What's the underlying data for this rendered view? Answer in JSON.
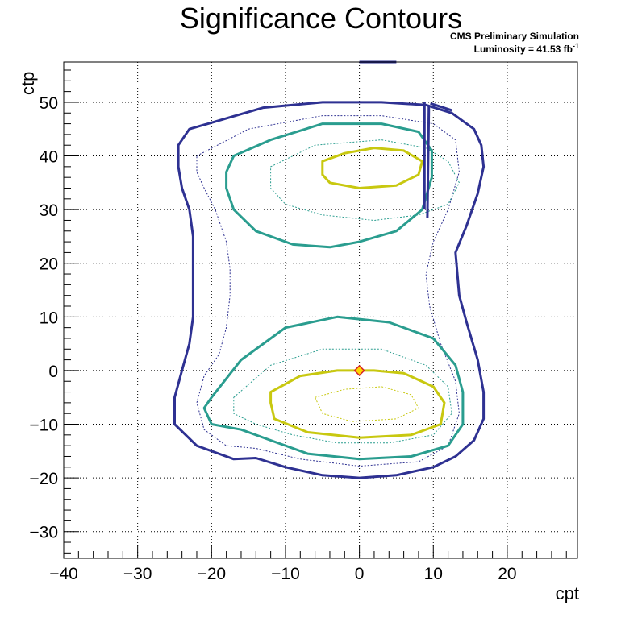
{
  "chart_data": {
    "type": "contour",
    "title": "Significance Contours",
    "annotation_line1": "CMS Preliminary Simulation",
    "annotation_line2": "Luminosity = 41.53 fb",
    "annotation_sup": "-1",
    "xlabel": "cpt",
    "ylabel": "ctp",
    "xlim": [
      -40,
      29.5
    ],
    "ylim": [
      -35,
      57.5
    ],
    "xticks": [
      -40,
      -30,
      -20,
      -10,
      0,
      10,
      20
    ],
    "xtick_labels": [
      "−40",
      "−30",
      "−20",
      "−10",
      "0",
      "10",
      "20"
    ],
    "yticks": [
      -30,
      -20,
      -10,
      0,
      10,
      20,
      30,
      40,
      50
    ],
    "ytick_labels": [
      "−30",
      "−20",
      "−10",
      "0",
      "10",
      "20",
      "30",
      "40",
      "50"
    ],
    "grid": true,
    "best_fit_point": [
      0,
      0
    ],
    "colors": {
      "outer": "#2e3192",
      "middle": "#2a9d8f",
      "inner": "#c8c810",
      "marker_fill": "#ffd700",
      "marker_edge": "#d62728"
    },
    "contours": [
      {
        "level": "outer",
        "style": "solid",
        "points": [
          [
            -23,
            45
          ],
          [
            -13,
            49
          ],
          [
            -5,
            50
          ],
          [
            3,
            50
          ],
          [
            9,
            49.5
          ],
          [
            12.5,
            48
          ],
          [
            15.5,
            45
          ],
          [
            16.5,
            42
          ],
          [
            16.8,
            38
          ],
          [
            16,
            33
          ],
          [
            14.5,
            27
          ],
          [
            13,
            22
          ],
          [
            13.5,
            14
          ],
          [
            14.5,
            9
          ],
          [
            16,
            2
          ],
          [
            16.8,
            -4
          ],
          [
            16.8,
            -9
          ],
          [
            15.5,
            -13
          ],
          [
            13,
            -16
          ],
          [
            10,
            -18
          ],
          [
            5,
            -19.5
          ],
          [
            0,
            -20
          ],
          [
            -5,
            -19.5
          ],
          [
            -10,
            -18
          ],
          [
            -14,
            -16.3
          ],
          [
            -17,
            -16.5
          ],
          [
            -22,
            -14
          ],
          [
            -25,
            -10
          ],
          [
            -25,
            -5
          ],
          [
            -24,
            0
          ],
          [
            -23,
            5
          ],
          [
            -22.5,
            10
          ],
          [
            -22.5,
            18
          ],
          [
            -22.5,
            25
          ],
          [
            -23,
            30
          ],
          [
            -24,
            34
          ],
          [
            -24.5,
            38
          ],
          [
            -24.5,
            42
          ]
        ]
      },
      {
        "level": "outer",
        "style": "dashed",
        "points": [
          [
            -22,
            40
          ],
          [
            -15,
            45
          ],
          [
            -5,
            47.5
          ],
          [
            3,
            47.5
          ],
          [
            10,
            46
          ],
          [
            13,
            43
          ],
          [
            13.5,
            37
          ],
          [
            12,
            30
          ],
          [
            10,
            24
          ],
          [
            9,
            18
          ],
          [
            9.5,
            12
          ],
          [
            11,
            5
          ],
          [
            13,
            -2
          ],
          [
            13.5,
            -8
          ],
          [
            12,
            -14
          ],
          [
            8,
            -17
          ],
          [
            0,
            -17.8
          ],
          [
            -8,
            -16.5
          ],
          [
            -14,
            -14.5
          ],
          [
            -18,
            -14
          ],
          [
            -21,
            -11
          ],
          [
            -22,
            -6
          ],
          [
            -21,
            -1
          ],
          [
            -19,
            3
          ],
          [
            -18,
            8
          ],
          [
            -17.5,
            14
          ],
          [
            -17.5,
            19
          ],
          [
            -18,
            24
          ],
          [
            -19.5,
            30
          ],
          [
            -21,
            34
          ],
          [
            -22,
            37
          ]
        ]
      },
      {
        "level": "middle",
        "style": "solid",
        "points": [
          [
            -17,
            40
          ],
          [
            -12,
            43
          ],
          [
            -5,
            46
          ],
          [
            3,
            46
          ],
          [
            8,
            44.5
          ],
          [
            9.8,
            41
          ],
          [
            9.8,
            36
          ],
          [
            8.5,
            30
          ],
          [
            5,
            26
          ],
          [
            0,
            24
          ],
          [
            -4,
            23
          ],
          [
            -9,
            23.5
          ],
          [
            -14,
            26
          ],
          [
            -17,
            30
          ],
          [
            -18,
            34
          ],
          [
            -18,
            37
          ]
        ]
      },
      {
        "level": "middle",
        "style": "solid",
        "points": [
          [
            -20,
            -5
          ],
          [
            -16,
            2
          ],
          [
            -10,
            8
          ],
          [
            -3,
            10
          ],
          [
            4,
            9
          ],
          [
            10,
            6
          ],
          [
            13,
            1
          ],
          [
            14,
            -4
          ],
          [
            14,
            -10
          ],
          [
            12,
            -14
          ],
          [
            7,
            -16
          ],
          [
            0,
            -16.5
          ],
          [
            -7,
            -15.5
          ],
          [
            -12,
            -13
          ],
          [
            -16,
            -11
          ],
          [
            -20,
            -10
          ],
          [
            -21,
            -7
          ]
        ]
      },
      {
        "level": "middle",
        "style": "dashed",
        "points": [
          [
            -12,
            38
          ],
          [
            -6,
            42
          ],
          [
            3,
            43
          ],
          [
            9,
            41.5
          ],
          [
            12,
            39
          ],
          [
            13.5,
            35
          ],
          [
            12,
            31
          ],
          [
            8,
            29
          ],
          [
            2,
            28
          ],
          [
            -5,
            29
          ],
          [
            -10,
            31
          ],
          [
            -12,
            34
          ]
        ]
      },
      {
        "level": "middle",
        "style": "dashed",
        "points": [
          [
            -17,
            -5
          ],
          [
            -12,
            1
          ],
          [
            -5,
            4
          ],
          [
            3,
            4
          ],
          [
            9,
            1
          ],
          [
            12,
            -3
          ],
          [
            12.5,
            -8
          ],
          [
            10,
            -12
          ],
          [
            4,
            -13.5
          ],
          [
            -3,
            -13.5
          ],
          [
            -9,
            -12
          ],
          [
            -14,
            -10
          ],
          [
            -17,
            -8
          ]
        ]
      },
      {
        "level": "inner",
        "style": "solid",
        "points": [
          [
            -5,
            39
          ],
          [
            -2,
            40.5
          ],
          [
            2,
            41.5
          ],
          [
            6,
            41
          ],
          [
            8.5,
            39
          ],
          [
            8,
            36.5
          ],
          [
            5,
            34.5
          ],
          [
            0,
            34
          ],
          [
            -4,
            35
          ],
          [
            -5,
            36.5
          ]
        ]
      },
      {
        "level": "inner",
        "style": "solid",
        "points": [
          [
            -12,
            -4
          ],
          [
            -8,
            -1
          ],
          [
            -3,
            0
          ],
          [
            2,
            0
          ],
          [
            6,
            -0.5
          ],
          [
            10,
            -3
          ],
          [
            11.5,
            -6
          ],
          [
            11,
            -10
          ],
          [
            7,
            -12
          ],
          [
            0,
            -12.5
          ],
          [
            -7,
            -11.5
          ],
          [
            -11.5,
            -9
          ],
          [
            -12,
            -6
          ]
        ]
      },
      {
        "level": "inner",
        "style": "dashed",
        "points": [
          [
            -6,
            -5
          ],
          [
            -2,
            -3.5
          ],
          [
            3,
            -3
          ],
          [
            7,
            -4.5
          ],
          [
            8,
            -7
          ],
          [
            5,
            -9
          ],
          [
            -1,
            -9.5
          ],
          [
            -5,
            -8
          ]
        ]
      }
    ],
    "contour_segments": [
      {
        "level": "outer",
        "style": "solid",
        "points": [
          [
            0,
            57.5
          ],
          [
            5,
            57.5
          ]
        ]
      },
      {
        "level": "outer",
        "style": "solid",
        "points": [
          [
            8.8,
            50
          ],
          [
            8.8,
            30
          ]
        ]
      },
      {
        "level": "outer",
        "style": "solid",
        "points": [
          [
            9.4,
            49.5
          ],
          [
            9.2,
            28.5
          ]
        ]
      },
      {
        "level": "outer",
        "style": "solid",
        "points": [
          [
            9.6,
            49.8
          ],
          [
            12.5,
            48.5
          ]
        ]
      }
    ]
  }
}
